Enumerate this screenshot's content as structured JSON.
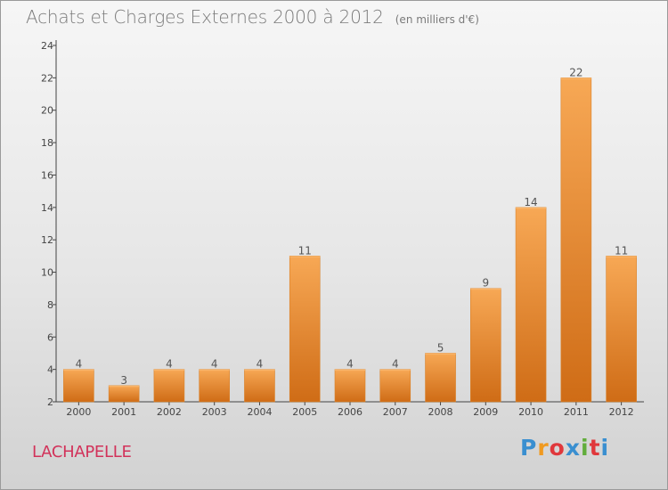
{
  "title": "Achats et Charges Externes 2000 à 2012",
  "unit_note": "(en milliers d'€)",
  "place": "LACHAPELLE",
  "brand": {
    "letters": [
      "P",
      "r",
      "o",
      "x",
      "i",
      "t",
      "i"
    ],
    "colors": [
      "#3a8fd0",
      "#f09a20",
      "#e0383c",
      "#3a8fd0",
      "#62ad3c",
      "#e0383c",
      "#3a8fd0"
    ]
  },
  "chart_data": {
    "type": "bar",
    "title": "Achats et Charges Externes 2000 à 2012",
    "subtitle": "(en milliers d'€)",
    "categories": [
      "2000",
      "2001",
      "2002",
      "2003",
      "2004",
      "2005",
      "2006",
      "2007",
      "2008",
      "2009",
      "2010",
      "2011",
      "2012"
    ],
    "values": [
      4,
      3,
      4,
      4,
      4,
      11,
      4,
      4,
      5,
      9,
      14,
      22,
      11
    ],
    "data_labels": [
      "4",
      "3",
      "4",
      "4",
      "4",
      "11",
      "4",
      "4",
      "5",
      "9",
      "14",
      "22",
      "11"
    ],
    "yticks": [
      2,
      4,
      6,
      8,
      10,
      12,
      14,
      16,
      18,
      20,
      22,
      24
    ],
    "ylim": [
      2,
      24
    ],
    "xlabel": "",
    "ylabel": "",
    "grid": false,
    "bar_color": "#f0922e"
  }
}
